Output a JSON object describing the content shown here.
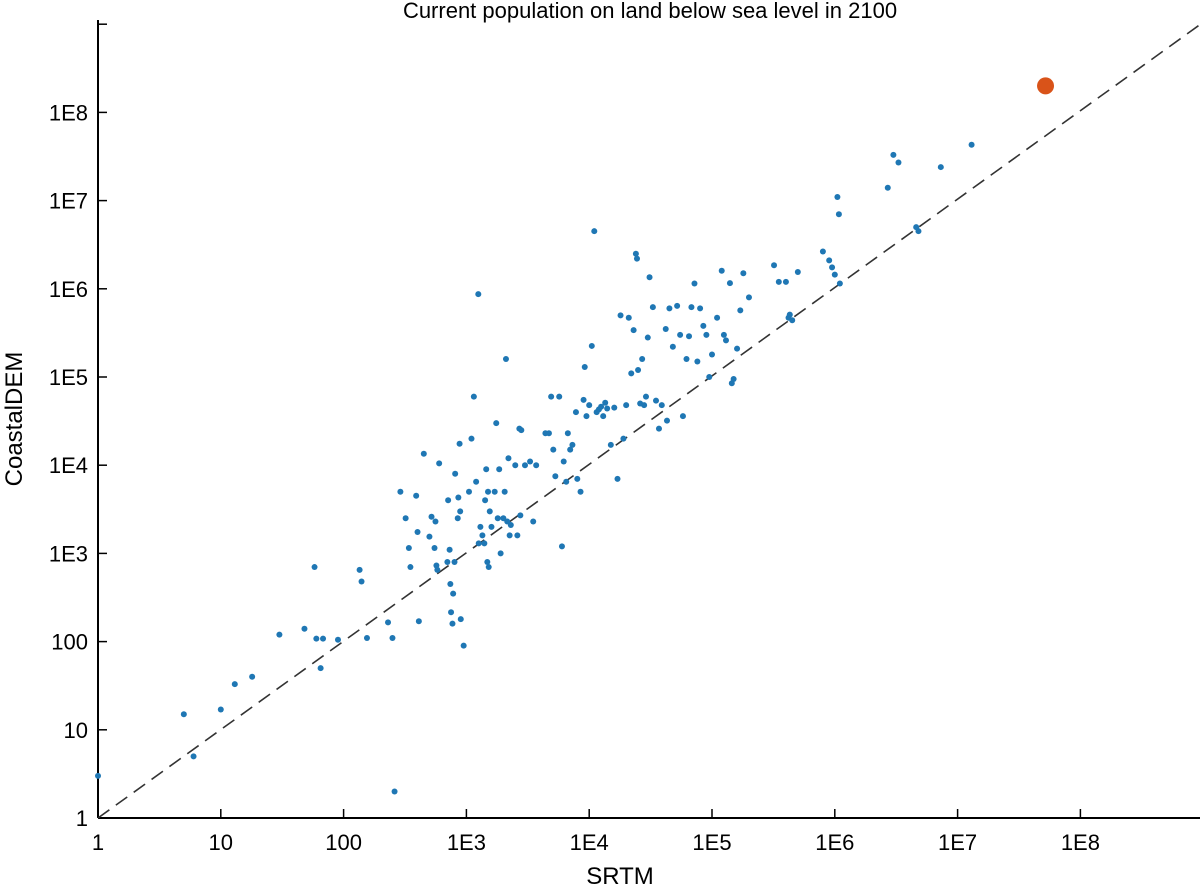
{
  "chart_data": {
    "type": "scatter",
    "title": "Current population on land below sea level in 2100",
    "xlabel": "SRTM",
    "ylabel": "CoastalDEM",
    "xscale": "log",
    "yscale": "log",
    "xlim": [
      1,
      1000000000
    ],
    "ylim": [
      1,
      1000000000
    ],
    "x_ticks": [
      {
        "value": 1,
        "label": "1"
      },
      {
        "value": 10,
        "label": "10"
      },
      {
        "value": 100,
        "label": "100"
      },
      {
        "value": 1000,
        "label": "1E3"
      },
      {
        "value": 10000,
        "label": "1E4"
      },
      {
        "value": 100000,
        "label": "1E5"
      },
      {
        "value": 1000000,
        "label": "1E6"
      },
      {
        "value": 10000000,
        "label": "1E7"
      },
      {
        "value": 100000000,
        "label": "1E8"
      }
    ],
    "y_ticks": [
      {
        "value": 1,
        "label": "1"
      },
      {
        "value": 10,
        "label": "10"
      },
      {
        "value": 100,
        "label": "100"
      },
      {
        "value": 1000,
        "label": "1E3"
      },
      {
        "value": 10000,
        "label": "1E4"
      },
      {
        "value": 100000,
        "label": "1E5"
      },
      {
        "value": 1000000,
        "label": "1E6"
      },
      {
        "value": 10000000,
        "label": "1E7"
      },
      {
        "value": 100000000,
        "label": "1E8"
      }
    ],
    "reference_line": {
      "style": "dashed",
      "equation": "y = x"
    },
    "grid": false,
    "series": [
      {
        "color": "#1f77b4",
        "points": [
          [
            1,
            3
          ],
          [
            5,
            15
          ],
          [
            6,
            5
          ],
          [
            10,
            17
          ],
          [
            13,
            33
          ],
          [
            18,
            40
          ],
          [
            30,
            120
          ],
          [
            48,
            140
          ],
          [
            58,
            700
          ],
          [
            60,
            108
          ],
          [
            65,
            50
          ],
          [
            68,
            108
          ],
          [
            90,
            105
          ],
          [
            135,
            650
          ],
          [
            140,
            480
          ],
          [
            155,
            110
          ],
          [
            230,
            165
          ],
          [
            250,
            110
          ],
          [
            260,
            2
          ],
          [
            290,
            5000
          ],
          [
            320,
            2500
          ],
          [
            340,
            1150
          ],
          [
            350,
            700
          ],
          [
            390,
            4500
          ],
          [
            400,
            1750
          ],
          [
            410,
            170
          ],
          [
            450,
            13500
          ],
          [
            500,
            1550
          ],
          [
            520,
            2600
          ],
          [
            550,
            1150
          ],
          [
            560,
            2300
          ],
          [
            570,
            730
          ],
          [
            580,
            650
          ],
          [
            600,
            10500
          ],
          [
            700,
            800
          ],
          [
            710,
            4000
          ],
          [
            730,
            1100
          ],
          [
            740,
            450
          ],
          [
            750,
            215
          ],
          [
            770,
            160
          ],
          [
            780,
            350
          ],
          [
            800,
            800
          ],
          [
            810,
            8000
          ],
          [
            850,
            2500
          ],
          [
            860,
            4300
          ],
          [
            880,
            17500
          ],
          [
            890,
            3000
          ],
          [
            900,
            180
          ],
          [
            950,
            90
          ],
          [
            1050,
            5000
          ],
          [
            1100,
            20000
          ],
          [
            1150,
            60000
          ],
          [
            1200,
            6500
          ],
          [
            1250,
            870000
          ],
          [
            1260,
            1300
          ],
          [
            1300,
            2000
          ],
          [
            1350,
            1600
          ],
          [
            1400,
            1300
          ],
          [
            1420,
            4000
          ],
          [
            1450,
            9000
          ],
          [
            1480,
            800
          ],
          [
            1500,
            5000
          ],
          [
            1520,
            700
          ],
          [
            1550,
            3000
          ],
          [
            1600,
            2000
          ],
          [
            1700,
            5000
          ],
          [
            1750,
            30000
          ],
          [
            1800,
            2500
          ],
          [
            1850,
            9000
          ],
          [
            1900,
            1000
          ],
          [
            2000,
            2500
          ],
          [
            2050,
            5000
          ],
          [
            2100,
            160000
          ],
          [
            2150,
            2300
          ],
          [
            2200,
            12000
          ],
          [
            2250,
            1600
          ],
          [
            2300,
            2100
          ],
          [
            2500,
            10000
          ],
          [
            2600,
            1600
          ],
          [
            2700,
            26000
          ],
          [
            2750,
            2700
          ],
          [
            2800,
            25000
          ],
          [
            3000,
            10000
          ],
          [
            3300,
            11000
          ],
          [
            3500,
            2300
          ],
          [
            3700,
            10000
          ],
          [
            4400,
            23000
          ],
          [
            4700,
            23000
          ],
          [
            4900,
            60000
          ],
          [
            5100,
            15000
          ],
          [
            5300,
            7500
          ],
          [
            5700,
            60000
          ],
          [
            6000,
            1200
          ],
          [
            6200,
            11000
          ],
          [
            6500,
            6500
          ],
          [
            6700,
            23000
          ],
          [
            7000,
            15000
          ],
          [
            7300,
            17000
          ],
          [
            7800,
            40000
          ],
          [
            8000,
            7000
          ],
          [
            8500,
            5000
          ],
          [
            9000,
            55000
          ],
          [
            9200,
            130000
          ],
          [
            9500,
            36000
          ],
          [
            10000,
            48000
          ],
          [
            10500,
            225000
          ],
          [
            11000,
            4500000
          ],
          [
            11500,
            40000
          ],
          [
            12000,
            43000
          ],
          [
            12500,
            46000
          ],
          [
            13000,
            36000
          ],
          [
            13500,
            51000
          ],
          [
            14000,
            44000
          ],
          [
            15000,
            17000
          ],
          [
            16000,
            45000
          ],
          [
            17000,
            7000
          ],
          [
            18000,
            500000
          ],
          [
            19000,
            20000
          ],
          [
            20000,
            48000
          ],
          [
            21000,
            470000
          ],
          [
            22000,
            110000
          ],
          [
            23000,
            340000
          ],
          [
            24000,
            2500000
          ],
          [
            24500,
            2200000
          ],
          [
            25000,
            120000
          ],
          [
            26000,
            50000
          ],
          [
            27000,
            160000
          ],
          [
            28000,
            48000
          ],
          [
            29000,
            60000
          ],
          [
            30000,
            280000
          ],
          [
            31000,
            1350000
          ],
          [
            33000,
            620000
          ],
          [
            35000,
            54000
          ],
          [
            37000,
            26000
          ],
          [
            39000,
            48000
          ],
          [
            42000,
            350000
          ],
          [
            43000,
            32000
          ],
          [
            45000,
            600000
          ],
          [
            48000,
            220000
          ],
          [
            52000,
            640000
          ],
          [
            55000,
            300000
          ],
          [
            58000,
            36000
          ],
          [
            62000,
            160000
          ],
          [
            65000,
            290000
          ],
          [
            68000,
            620000
          ],
          [
            72000,
            1150000
          ],
          [
            76000,
            150000
          ],
          [
            80000,
            600000
          ],
          [
            85000,
            380000
          ],
          [
            90000,
            300000
          ],
          [
            95000,
            100000
          ],
          [
            100000,
            180000
          ],
          [
            110000,
            470000
          ],
          [
            120000,
            1600000
          ],
          [
            125000,
            300000
          ],
          [
            130000,
            260000
          ],
          [
            140000,
            1160000
          ],
          [
            145000,
            85000
          ],
          [
            150000,
            95000
          ],
          [
            160000,
            210000
          ],
          [
            170000,
            570000
          ],
          [
            180000,
            1500000
          ],
          [
            200000,
            800000
          ],
          [
            320000,
            1850000
          ],
          [
            350000,
            1200000
          ],
          [
            400000,
            1200000
          ],
          [
            420000,
            470000
          ],
          [
            430000,
            510000
          ],
          [
            450000,
            440000
          ],
          [
            500000,
            1550000
          ],
          [
            800000,
            2650000
          ],
          [
            900000,
            2100000
          ],
          [
            950000,
            1750000
          ],
          [
            1000000,
            1450000
          ],
          [
            1050000,
            11000000
          ],
          [
            1080000,
            7000000
          ],
          [
            1100000,
            1150000
          ],
          [
            2700000,
            14000000
          ],
          [
            3000000,
            33000000
          ],
          [
            3300000,
            27000000
          ],
          [
            4600000,
            5000000
          ],
          [
            4800000,
            4500000
          ],
          [
            7300000,
            24000000
          ],
          [
            13000000,
            43000000
          ]
        ]
      },
      {
        "color": "#d95319",
        "points": [
          [
            52000000,
            200000000
          ]
        ]
      }
    ]
  }
}
